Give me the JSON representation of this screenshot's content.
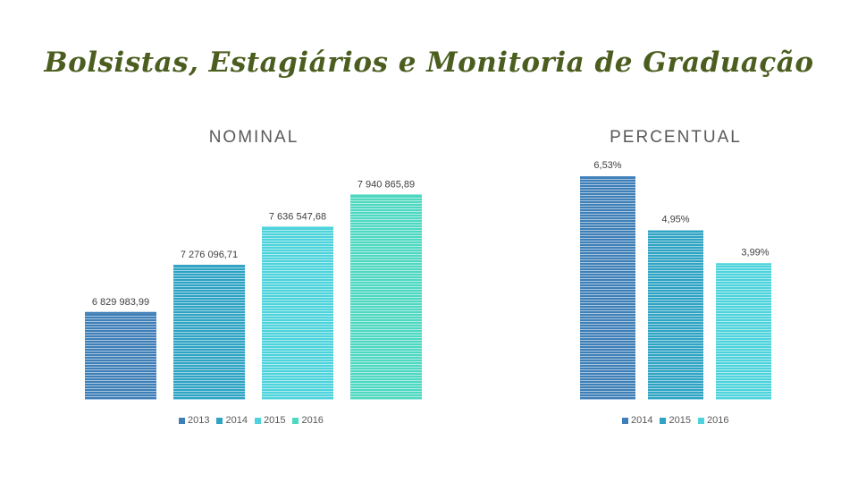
{
  "title": "Bolsistas, Estagiários e Monitoria de Graduação",
  "chart_data": [
    {
      "type": "bar",
      "title": "NOMINAL",
      "categories": [
        "2013",
        "2014",
        "2015",
        "2016"
      ],
      "values": [
        6829983.99,
        7276096.71,
        7636547.68,
        7940865.89
      ],
      "data_labels": [
        "6 829 983,99",
        "7 276 096,71",
        "7 636 547,68",
        "7 940 865,89"
      ],
      "colors": [
        "#3f7fb8",
        "#2fa3c4",
        "#4cd3dc",
        "#4ed8c0"
      ],
      "legend": [
        "2013",
        "2014",
        "2015",
        "2016"
      ],
      "legend_placement": "bottom",
      "ylim": [
        6000000,
        8300000
      ],
      "grid": false
    },
    {
      "type": "bar",
      "title": "PERCENTUAL",
      "categories": [
        "2014",
        "2015",
        "2016"
      ],
      "values": [
        6.53,
        4.95,
        3.99
      ],
      "data_labels": [
        "6,53%",
        "4,95%",
        "3,99%"
      ],
      "colors": [
        "#3f7fb8",
        "#2fa3c4",
        "#4cd3dc"
      ],
      "legend": [
        "2014",
        "2015",
        "2016"
      ],
      "legend_placement": "bottom",
      "ylim": [
        0,
        6.9
      ],
      "grid": false
    }
  ]
}
